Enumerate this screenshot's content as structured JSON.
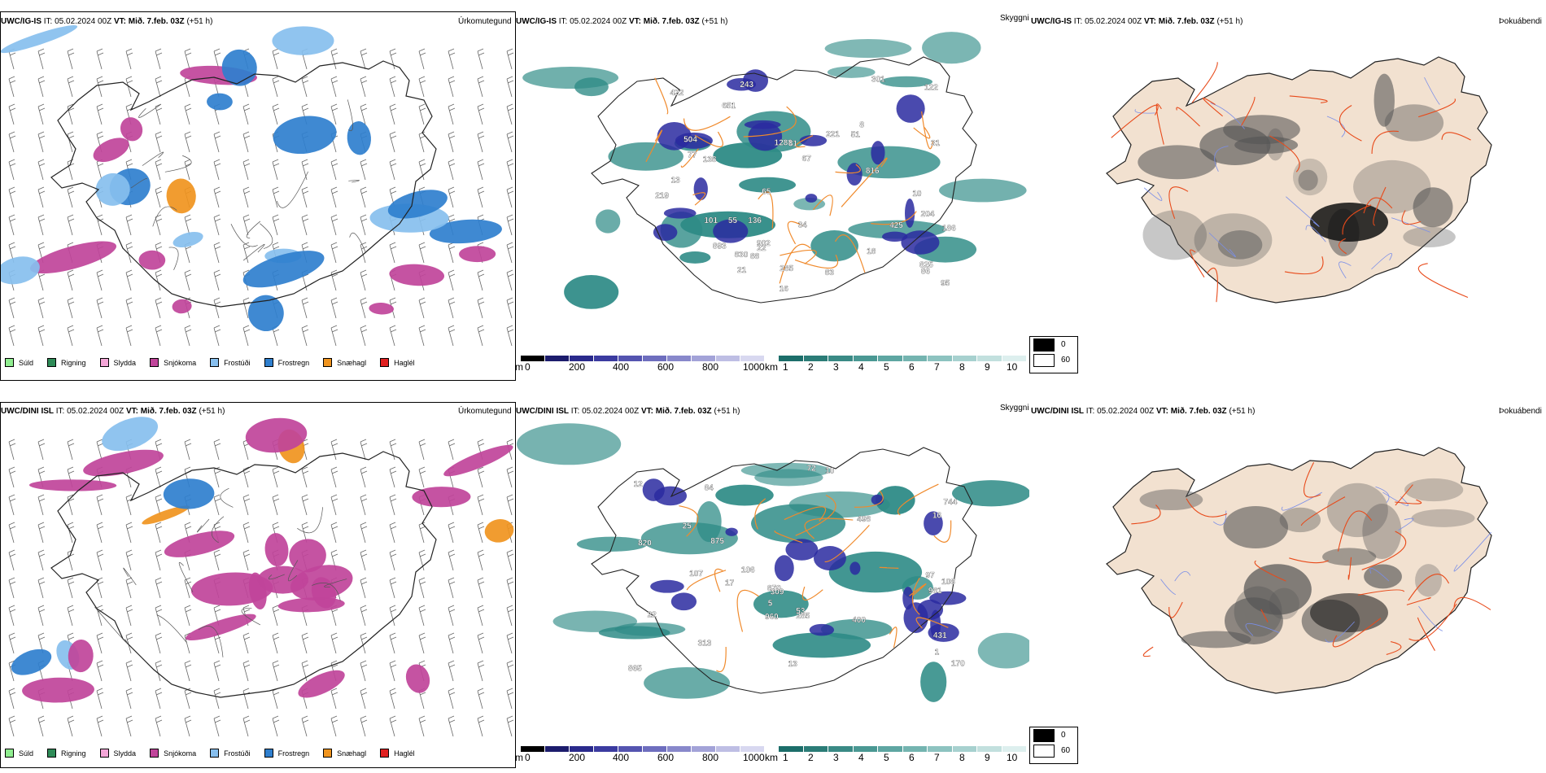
{
  "rows": [
    {
      "wx": {
        "model": "UWC/IG-IS",
        "init": "IT: 05.02.2024 00Z",
        "vt_label": "VT:",
        "valid": "Mið. 7.feb. 03Z",
        "lead": "(+51 h)",
        "param": "Úrkomutegund"
      },
      "cloud": {
        "model": "UWC/IG-IS",
        "init": "IT: 05.02.2024 00Z",
        "vt_label": "VT:",
        "valid": "Mið. 7.feb. 03Z",
        "lead": "(+51 h)",
        "param": "Skyggni",
        "cloud_labels": [
          "204",
          "10",
          "816",
          "504",
          "221",
          "18",
          "13",
          "1288",
          "95",
          "219",
          "301",
          "8",
          "88",
          "425",
          "21",
          "55",
          "186",
          "77",
          "138",
          "67",
          "83",
          "81",
          "122",
          "86",
          "902",
          "243",
          "136",
          "651",
          "101",
          "65",
          "34",
          "31",
          "830",
          "22",
          "51",
          "285",
          "893",
          "825",
          "422",
          "16"
        ]
      },
      "fog": {
        "model": "UWC/IG-IS",
        "init": "IT: 05.02.2024 00Z",
        "vt_label": "VT:",
        "valid": "Mið. 7.feb. 03Z",
        "lead": "(+51 h)",
        "param": "Þokuábendi"
      }
    },
    {
      "wx": {
        "model": "UWC/DINI ISL",
        "init": "IT: 05.02.2024 00Z",
        "vt_label": "VT:",
        "valid": "Mið. 7.feb. 03Z",
        "lead": "(+51 h)",
        "param": "Úrkomutegund"
      },
      "cloud": {
        "model": "UWC/DINI ISL",
        "init": "IT: 05.02.2024 00Z",
        "vt_label": "VT:",
        "valid": "Mið. 7.feb. 03Z",
        "lead": "(+51 h)",
        "param": "Skyggni",
        "cloud_labels": [
          "981",
          "870",
          "744",
          "960",
          "865",
          "107",
          "13",
          "108",
          "313",
          "309",
          "53",
          "106",
          "10",
          "22",
          "431",
          "17",
          "170",
          "84",
          "97",
          "285",
          "400",
          "498",
          "820",
          "72",
          "12",
          "16",
          "25",
          "875",
          "5",
          "1"
        ]
      },
      "fog": {
        "model": "UWC/DINI ISL",
        "init": "IT: 05.02.2024 00Z",
        "vt_label": "VT:",
        "valid": "Mið. 7.feb. 03Z",
        "lead": "(+51 h)",
        "param": "Þokuábendi"
      }
    }
  ],
  "precip_legend": [
    {
      "label": "Súld",
      "color": "#90ee90"
    },
    {
      "label": "Rigning",
      "color": "#2e8b57"
    },
    {
      "label": "Slydda",
      "color": "#f4a6d7"
    },
    {
      "label": "Snjókoma",
      "color": "#c0449a"
    },
    {
      "label": "Frostúði",
      "color": "#87bfee"
    },
    {
      "label": "Frostregn",
      "color": "#2f7fce"
    },
    {
      "label": "Snæhagl",
      "color": "#f0941e"
    },
    {
      "label": "Haglél",
      "color": "#e02020"
    }
  ],
  "cloud_base_bar": {
    "unit": "m",
    "ticks": [
      "0",
      "200",
      "400",
      "600",
      "800",
      "1000"
    ],
    "colors": [
      "#000000",
      "#1c1c6c",
      "#2a2a8c",
      "#3b3ba0",
      "#5454b0",
      "#6e6ebe",
      "#8888cb",
      "#a3a3d8",
      "#bebee4",
      "#d8d8f0"
    ]
  },
  "visibility_bar": {
    "unit": "km",
    "ticks": [
      "1",
      "2",
      "3",
      "4",
      "5",
      "6",
      "7",
      "8",
      "9",
      "10"
    ],
    "colors": [
      "#1c6e6a",
      "#2b7c77",
      "#3a8a85",
      "#4a9893",
      "#5ea6a2",
      "#74b4b0",
      "#8dc3c0",
      "#a7d1cf",
      "#c2e0de",
      "#ddefee"
    ]
  },
  "fog_bar": {
    "entries": [
      {
        "label": "0",
        "color": "#000000"
      },
      {
        "label": "60",
        "color": "#ffffff"
      }
    ]
  },
  "colors": {
    "snow": "#c0449a",
    "frz_drizzle": "#87bfee",
    "frz_rain": "#2f7fce",
    "snow_pellets": "#f0941e",
    "cloud_base": "#2a2aa0",
    "visibility": "#2e8b86",
    "roads": "#f08a2c",
    "fog_land": "#f2e1d0",
    "fog_roads": "#e84a1a",
    "rivers": "#7a8ee8"
  }
}
